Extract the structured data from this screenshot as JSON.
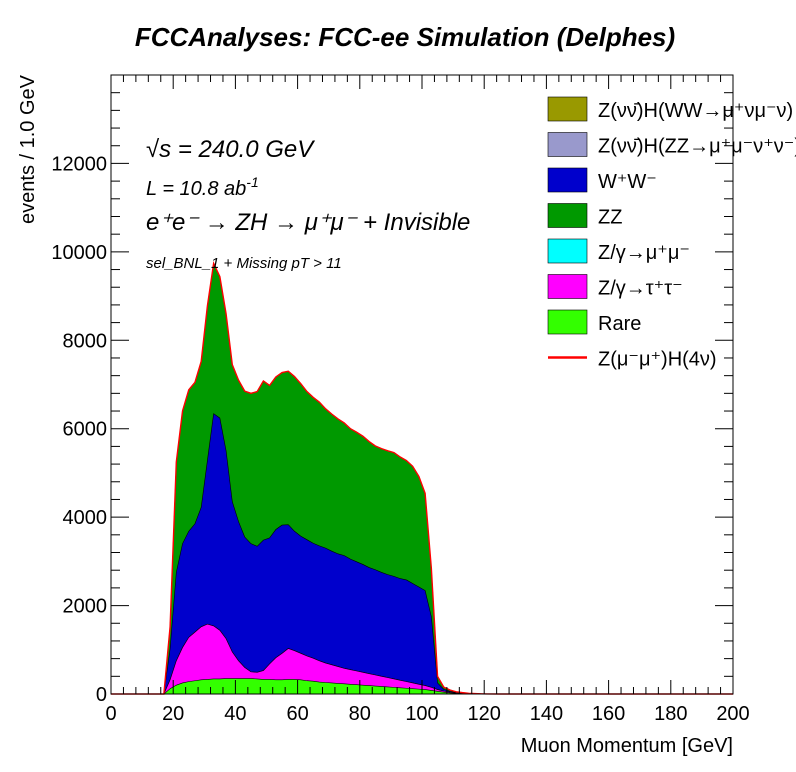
{
  "chart_data": {
    "type": "area",
    "title": "FCCAnalyses: FCC-ee Simulation (Delphes)",
    "xlabel": "Muon Momentum [GeV]",
    "ylabel": "events / 1.0 GeV",
    "xlim": [
      0,
      200
    ],
    "ylim": [
      0,
      14000
    ],
    "x_ticks": [
      "0",
      "20",
      "40",
      "60",
      "80",
      "100",
      "120",
      "140",
      "160",
      "180",
      "200"
    ],
    "y_ticks": [
      "0",
      "2000",
      "4000",
      "6000",
      "8000",
      "10000",
      "12000"
    ],
    "annotations": {
      "sqrt_s": "√s = 240.0 GeV",
      "lumi": "L = 10.8 ab",
      "lumi_exp": "-1",
      "process": "e⁺e⁻ → ZH → μ⁺μ⁻ + Invisible",
      "selection": "sel_BNL_1 + Missing pT > 11"
    },
    "stacked": true,
    "x": [
      17,
      19,
      21,
      23,
      25,
      27,
      29,
      31,
      33,
      35,
      37,
      39,
      41,
      43,
      45,
      47,
      49,
      51,
      53,
      55,
      57,
      59,
      61,
      63,
      65,
      67,
      69,
      71,
      73,
      75,
      77,
      79,
      81,
      83,
      85,
      87,
      89,
      91,
      93,
      95,
      97,
      99,
      101,
      103,
      105,
      107,
      109,
      111,
      113,
      115,
      117,
      119,
      121,
      125,
      130,
      140,
      160,
      180,
      199
    ],
    "series": [
      {
        "name": "Rare",
        "color": "#33ff00",
        "values": [
          0,
          120,
          200,
          250,
          280,
          300,
          320,
          330,
          340,
          340,
          350,
          350,
          350,
          350,
          350,
          340,
          330,
          330,
          320,
          320,
          330,
          330,
          320,
          300,
          290,
          270,
          260,
          250,
          240,
          230,
          220,
          210,
          200,
          190,
          180,
          170,
          160,
          150,
          140,
          130,
          120,
          110,
          100,
          80,
          60,
          40,
          25,
          15,
          10,
          5,
          3,
          2,
          1,
          0,
          0,
          0,
          0,
          0,
          0
        ]
      },
      {
        "name": "Z/γ→τ⁺τ⁻",
        "color": "#ff00ff",
        "values": [
          0,
          200,
          550,
          800,
          1000,
          1100,
          1200,
          1250,
          1200,
          1100,
          900,
          600,
          400,
          250,
          150,
          150,
          200,
          350,
          500,
          600,
          700,
          650,
          600,
          560,
          520,
          480,
          440,
          410,
          380,
          350,
          330,
          310,
          290,
          270,
          250,
          230,
          210,
          190,
          170,
          150,
          130,
          110,
          90,
          70,
          40,
          25,
          15,
          10,
          5,
          3,
          2,
          1,
          0,
          0,
          0,
          0,
          0,
          0,
          0
        ]
      },
      {
        "name": "Z/γ→μ⁺μ⁻",
        "color": "#00ffff",
        "values": [
          0,
          0,
          0,
          0,
          0,
          0,
          0,
          0,
          0,
          0,
          0,
          0,
          0,
          0,
          0,
          0,
          0,
          0,
          0,
          0,
          0,
          0,
          0,
          0,
          0,
          0,
          0,
          0,
          0,
          0,
          0,
          0,
          0,
          0,
          0,
          0,
          0,
          0,
          0,
          0,
          0,
          0,
          0,
          0,
          0,
          0,
          0,
          0,
          0,
          0,
          0,
          0,
          0,
          0,
          0,
          0,
          0,
          0,
          0
        ]
      },
      {
        "name": "W⁺W⁻",
        "color": "#0000cc",
        "values": [
          0,
          700,
          2000,
          2350,
          2400,
          2450,
          2700,
          3700,
          4800,
          4800,
          4250,
          3400,
          3150,
          2950,
          2900,
          2850,
          2950,
          2850,
          2900,
          2900,
          2800,
          2700,
          2650,
          2630,
          2600,
          2600,
          2600,
          2570,
          2550,
          2550,
          2500,
          2470,
          2440,
          2400,
          2380,
          2350,
          2330,
          2320,
          2300,
          2300,
          2250,
          2200,
          2150,
          1600,
          150,
          40,
          20,
          10,
          6,
          3,
          2,
          0,
          0,
          0,
          0,
          0,
          0,
          0,
          0
        ]
      },
      {
        "name": "ZZ",
        "color": "#009900",
        "values": [
          0,
          500,
          2500,
          3000,
          3200,
          3200,
          3300,
          3500,
          3400,
          3200,
          3100,
          3100,
          3200,
          3300,
          3400,
          3500,
          3600,
          3450,
          3450,
          3450,
          3470,
          3500,
          3450,
          3350,
          3300,
          3250,
          3150,
          3100,
          3050,
          3000,
          2950,
          2930,
          2900,
          2850,
          2800,
          2800,
          2800,
          2800,
          2750,
          2700,
          2650,
          2500,
          2200,
          1100,
          150,
          50,
          30,
          15,
          10,
          5,
          3,
          2,
          1,
          0,
          0,
          0,
          0,
          0,
          0
        ]
      },
      {
        "name": "Z(νν̄)H(ZZ→μ⁺μ⁻ν⁺ν⁻)",
        "color": "#9999cc",
        "values": [
          0,
          0,
          0,
          0,
          0,
          0,
          0,
          0,
          0,
          0,
          0,
          0,
          0,
          0,
          0,
          0,
          0,
          0,
          0,
          0,
          0,
          0,
          0,
          0,
          0,
          0,
          0,
          0,
          0,
          0,
          0,
          0,
          0,
          0,
          0,
          0,
          0,
          0,
          0,
          0,
          0,
          0,
          0,
          0,
          0,
          0,
          0,
          0,
          0,
          0,
          0,
          0,
          0,
          0,
          0,
          0,
          0,
          0,
          0
        ]
      },
      {
        "name": "Z(νν̄)H(WW→μ⁺νμ⁻ν)",
        "color": "#999900",
        "values": [
          0,
          0,
          0,
          0,
          0,
          0,
          0,
          0,
          0,
          0,
          0,
          0,
          0,
          0,
          0,
          0,
          0,
          0,
          0,
          0,
          0,
          0,
          0,
          0,
          0,
          0,
          0,
          0,
          0,
          0,
          0,
          0,
          0,
          0,
          0,
          0,
          0,
          0,
          0,
          0,
          0,
          0,
          0,
          0,
          0,
          0,
          0,
          0,
          0,
          0,
          0,
          0,
          0,
          0,
          0,
          0,
          0,
          0,
          0
        ]
      }
    ],
    "signal": {
      "name": "Z(μ⁻μ⁺)H(4ν)",
      "color": "#ff0000",
      "style": "line"
    },
    "legend": {
      "position": "top-right"
    },
    "grid": false
  }
}
